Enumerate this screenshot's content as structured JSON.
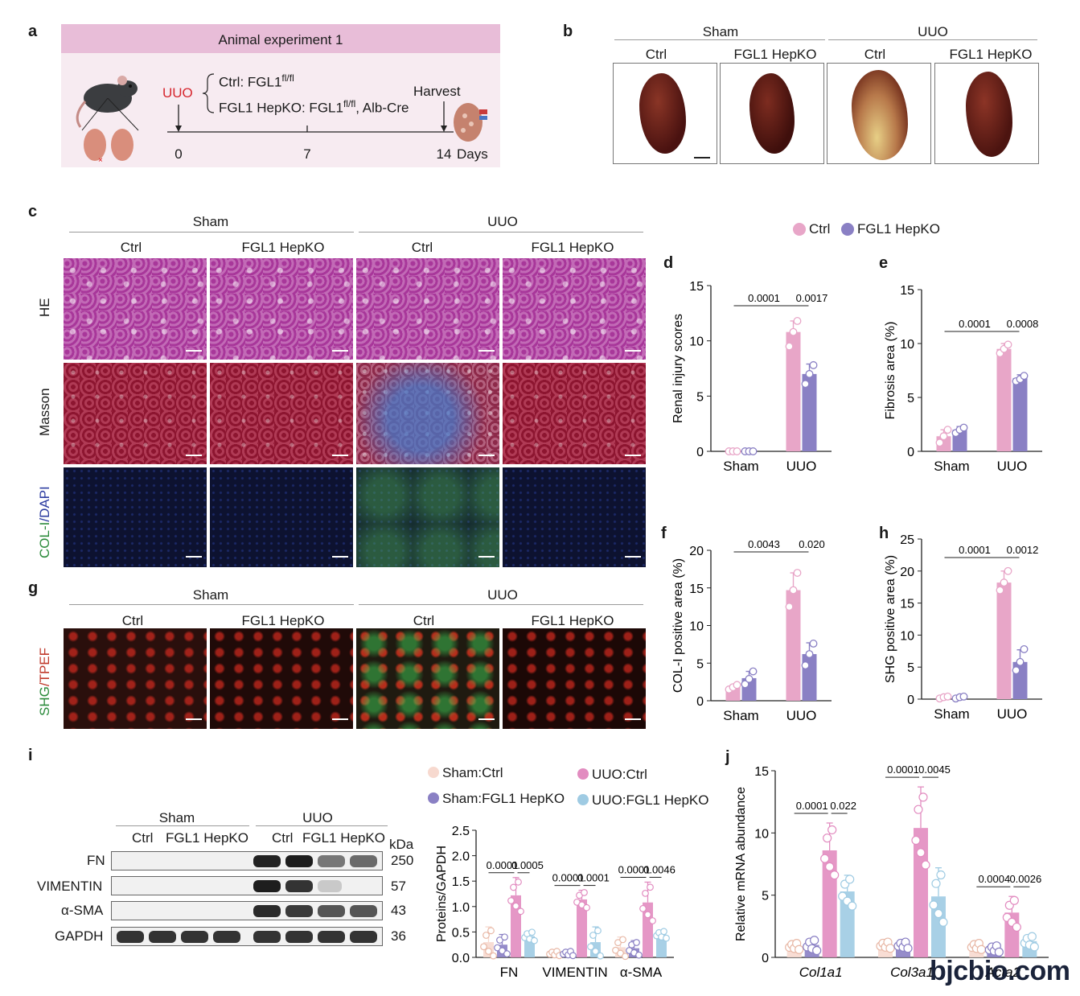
{
  "panels": {
    "a": "a",
    "b": "b",
    "c": "c",
    "d": "d",
    "e": "e",
    "f": "f",
    "g": "g",
    "h": "h",
    "i": "i",
    "j": "j"
  },
  "panel_a": {
    "header": "Animal experiment 1",
    "uuo": "UUO",
    "ctrl_line": "Ctrl: FGL1",
    "ctrl_sup": "fl/fl",
    "ko_line": "FGL1 HepKO: FGL1",
    "ko_sup": "fl/fl",
    "ko_tail": ", Alb-Cre",
    "harvest": "Harvest",
    "ticks": [
      "0",
      "7",
      "14"
    ],
    "days": "Days"
  },
  "panel_b": {
    "group1": "Sham",
    "group2": "UUO",
    "cols": [
      "Ctrl",
      "FGL1 HepKO",
      "Ctrl",
      "FGL1 HepKO"
    ]
  },
  "panel_c": {
    "group1": "Sham",
    "group2": "UUO",
    "cols": [
      "Ctrl",
      "FGL1 HepKO",
      "Ctrl",
      "FGL1 HepKO"
    ],
    "rows": [
      "HE",
      "Masson",
      "COL-I",
      "/DAPI"
    ]
  },
  "panel_g": {
    "group1": "Sham",
    "group2": "UUO",
    "cols": [
      "Ctrl",
      "FGL1 HepKO",
      "Ctrl",
      "FGL1 HepKO"
    ],
    "row_a": "SHG",
    "row_b": "/TPEF"
  },
  "legend_top": {
    "items": [
      {
        "label": "Ctrl",
        "color": "#e8a6c8"
      },
      {
        "label": "FGL1 HepKO",
        "color": "#8a80c4"
      }
    ]
  },
  "colors": {
    "ctrl": "#e8a6c8",
    "ko": "#8a80c4",
    "sham_ctrl": "#f7d9cf",
    "sham_ko": "#8a80c4",
    "uuo_ctrl": "#e28cc0",
    "uuo_ko": "#9fcbe3"
  },
  "chart_data": [
    {
      "panel": "d",
      "type": "bar",
      "categories": [
        "Sham",
        "UUO"
      ],
      "series": [
        {
          "name": "Ctrl",
          "values": [
            0,
            10.8
          ]
        },
        {
          "name": "FGL1 HepKO",
          "values": [
            0,
            7.0
          ]
        }
      ],
      "points": [
        [
          [
            0,
            0,
            0
          ],
          [
            0,
            0,
            0
          ]
        ],
        [
          [
            9.5,
            10.8,
            11.8
          ],
          [
            6.1,
            7.0,
            7.8
          ]
        ]
      ],
      "errors": [
        [
          0,
          0
        ],
        [
          1.0,
          0.9
        ]
      ],
      "ylabel": "Renal injury scores",
      "ylim": [
        0,
        15
      ],
      "yticks": [
        0,
        5,
        10,
        15
      ],
      "annotations": [
        "0.0001",
        "0.0017"
      ]
    },
    {
      "panel": "e",
      "type": "bar",
      "categories": [
        "Sham",
        "UUO"
      ],
      "series": [
        {
          "name": "Ctrl",
          "values": [
            1.4,
            9.5
          ]
        },
        {
          "name": "FGL1 HepKO",
          "values": [
            2.0,
            6.8
          ]
        }
      ],
      "points": [
        [
          [
            0.8,
            1.4,
            2.0
          ],
          [
            1.7,
            2.0,
            2.2
          ]
        ],
        [
          [
            9.1,
            9.5,
            9.9
          ],
          [
            6.5,
            6.7,
            7.0
          ]
        ]
      ],
      "errors": [
        [
          0.6,
          0.3
        ],
        [
          0.5,
          0.3
        ]
      ],
      "ylabel": "Fibrosis area (%)",
      "ylim": [
        0,
        15
      ],
      "yticks": [
        0,
        5,
        10,
        15
      ],
      "annotations": [
        "0.0001",
        "0.0008"
      ]
    },
    {
      "panel": "f",
      "type": "bar",
      "categories": [
        "Sham",
        "UUO"
      ],
      "series": [
        {
          "name": "Ctrl",
          "values": [
            1.8,
            14.7
          ]
        },
        {
          "name": "FGL1 HepKO",
          "values": [
            3.0,
            6.2
          ]
        }
      ],
      "points": [
        [
          [
            1.5,
            1.8,
            2.1
          ],
          [
            2.2,
            2.9,
            3.9
          ]
        ],
        [
          [
            12.5,
            14.7,
            17.0
          ],
          [
            4.7,
            6.2,
            7.6
          ]
        ]
      ],
      "errors": [
        [
          0.3,
          0.9
        ],
        [
          2.3,
          1.5
        ]
      ],
      "ylabel": "COL-I positive area (%)",
      "ylim": [
        0,
        20
      ],
      "yticks": [
        0,
        5,
        10,
        15,
        20
      ],
      "annotations": [
        "0.0043",
        "0.020"
      ]
    },
    {
      "panel": "h",
      "type": "bar",
      "categories": [
        "Sham",
        "UUO"
      ],
      "series": [
        {
          "name": "Ctrl",
          "values": [
            0.3,
            18.2
          ]
        },
        {
          "name": "FGL1 HepKO",
          "values": [
            0.3,
            5.8
          ]
        }
      ],
      "points": [
        [
          [
            0.1,
            0.3,
            0.4
          ],
          [
            0.1,
            0.3,
            0.4
          ]
        ],
        [
          [
            17.0,
            18.2,
            20.0
          ],
          [
            4.5,
            5.8,
            7.8
          ]
        ]
      ],
      "errors": [
        [
          0.2,
          0.2
        ],
        [
          1.8,
          1.9
        ]
      ],
      "ylabel": "SHG positive area (%)",
      "ylim": [
        0,
        25
      ],
      "yticks": [
        0,
        5,
        10,
        15,
        20,
        25
      ],
      "annotations": [
        "0.0001",
        "0.0012"
      ]
    },
    {
      "panel": "i",
      "type": "bar",
      "categories": [
        "FN",
        "VIMENTIN",
        "α-SMA"
      ],
      "series": [
        {
          "name": "Sham:Ctrl",
          "values": [
            0.3,
            0.08,
            0.2
          ]
        },
        {
          "name": "Sham:FGL1 HepKO",
          "values": [
            0.25,
            0.08,
            0.18
          ]
        },
        {
          "name": "UUO:Ctrl",
          "values": [
            1.22,
            1.14,
            1.08
          ]
        },
        {
          "name": "UUO:FGL1 HepKO",
          "values": [
            0.42,
            0.3,
            0.45
          ]
        }
      ],
      "errors": [
        [
          0.3,
          0.05,
          0.2
        ],
        [
          0.2,
          0.05,
          0.15
        ],
        [
          0.35,
          0.18,
          0.4
        ],
        [
          0.1,
          0.3,
          0.08
        ]
      ],
      "ylabel": "Proteins/GAPDH",
      "ylim": [
        0,
        2.5
      ],
      "yticks": [
        "0.0",
        "0.5",
        "1.0",
        "1.5",
        "2.0",
        "2.5"
      ],
      "annotations": [
        "0.0001",
        "0.0005",
        "0.0001",
        "0.0001",
        "0.0001",
        "0.0046"
      ]
    },
    {
      "panel": "j",
      "type": "bar",
      "categories": [
        "Col1a1",
        "Col3a1",
        "Acta2"
      ],
      "series": [
        {
          "name": "Sham:Ctrl",
          "values": [
            0.9,
            1.0,
            0.9
          ]
        },
        {
          "name": "Sham:FGL1 HepKO",
          "values": [
            1.0,
            1.0,
            0.7
          ]
        },
        {
          "name": "UUO:Ctrl",
          "values": [
            8.6,
            10.4,
            3.6
          ]
        },
        {
          "name": "UUO:FGL1 HepKO",
          "values": [
            5.3,
            4.9,
            1.3
          ]
        }
      ],
      "errors": [
        [
          0.3,
          0.3,
          0.3
        ],
        [
          0.5,
          0.3,
          0.3
        ],
        [
          2.2,
          3.3,
          1.3
        ],
        [
          1.3,
          2.3,
          0.5
        ]
      ],
      "ylabel": "Relative mRNA abundance",
      "ylim": [
        0,
        15
      ],
      "yticks": [
        0,
        5,
        10,
        15
      ],
      "annotations": [
        "0.0001",
        "0.022",
        "0.0001",
        "0.0045",
        "0.0004",
        "0.0026"
      ]
    }
  ],
  "panel_i_blot": {
    "group1": "Sham",
    "group2": "UUO",
    "lanes": [
      "Ctrl",
      "FGL1 HepKO",
      "Ctrl",
      "FGL1 HepKO"
    ],
    "kda": "kDa",
    "rows": [
      {
        "name": "FN",
        "kda": "250"
      },
      {
        "name": "VIMENTIN",
        "kda": "57"
      },
      {
        "name": "α-SMA",
        "kda": "43"
      },
      {
        "name": "GAPDH",
        "kda": "36"
      }
    ]
  },
  "watermark": "bjcbio.com"
}
